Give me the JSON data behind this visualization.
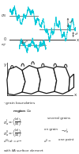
{
  "bg_color": "#ffffff",
  "top_panel": {
    "lvl_high": 0.72,
    "lvl_mid": 0.3,
    "lvl_low": -0.18,
    "cyan_color": "#00c8d8",
    "line_color": "#666666",
    "zero_color": "#333333"
  },
  "grain_panel": {
    "grain_color": "#1a1a1a",
    "grain_fill": "#ffffff"
  },
  "legend": {
    "font_size": 3.2
  }
}
